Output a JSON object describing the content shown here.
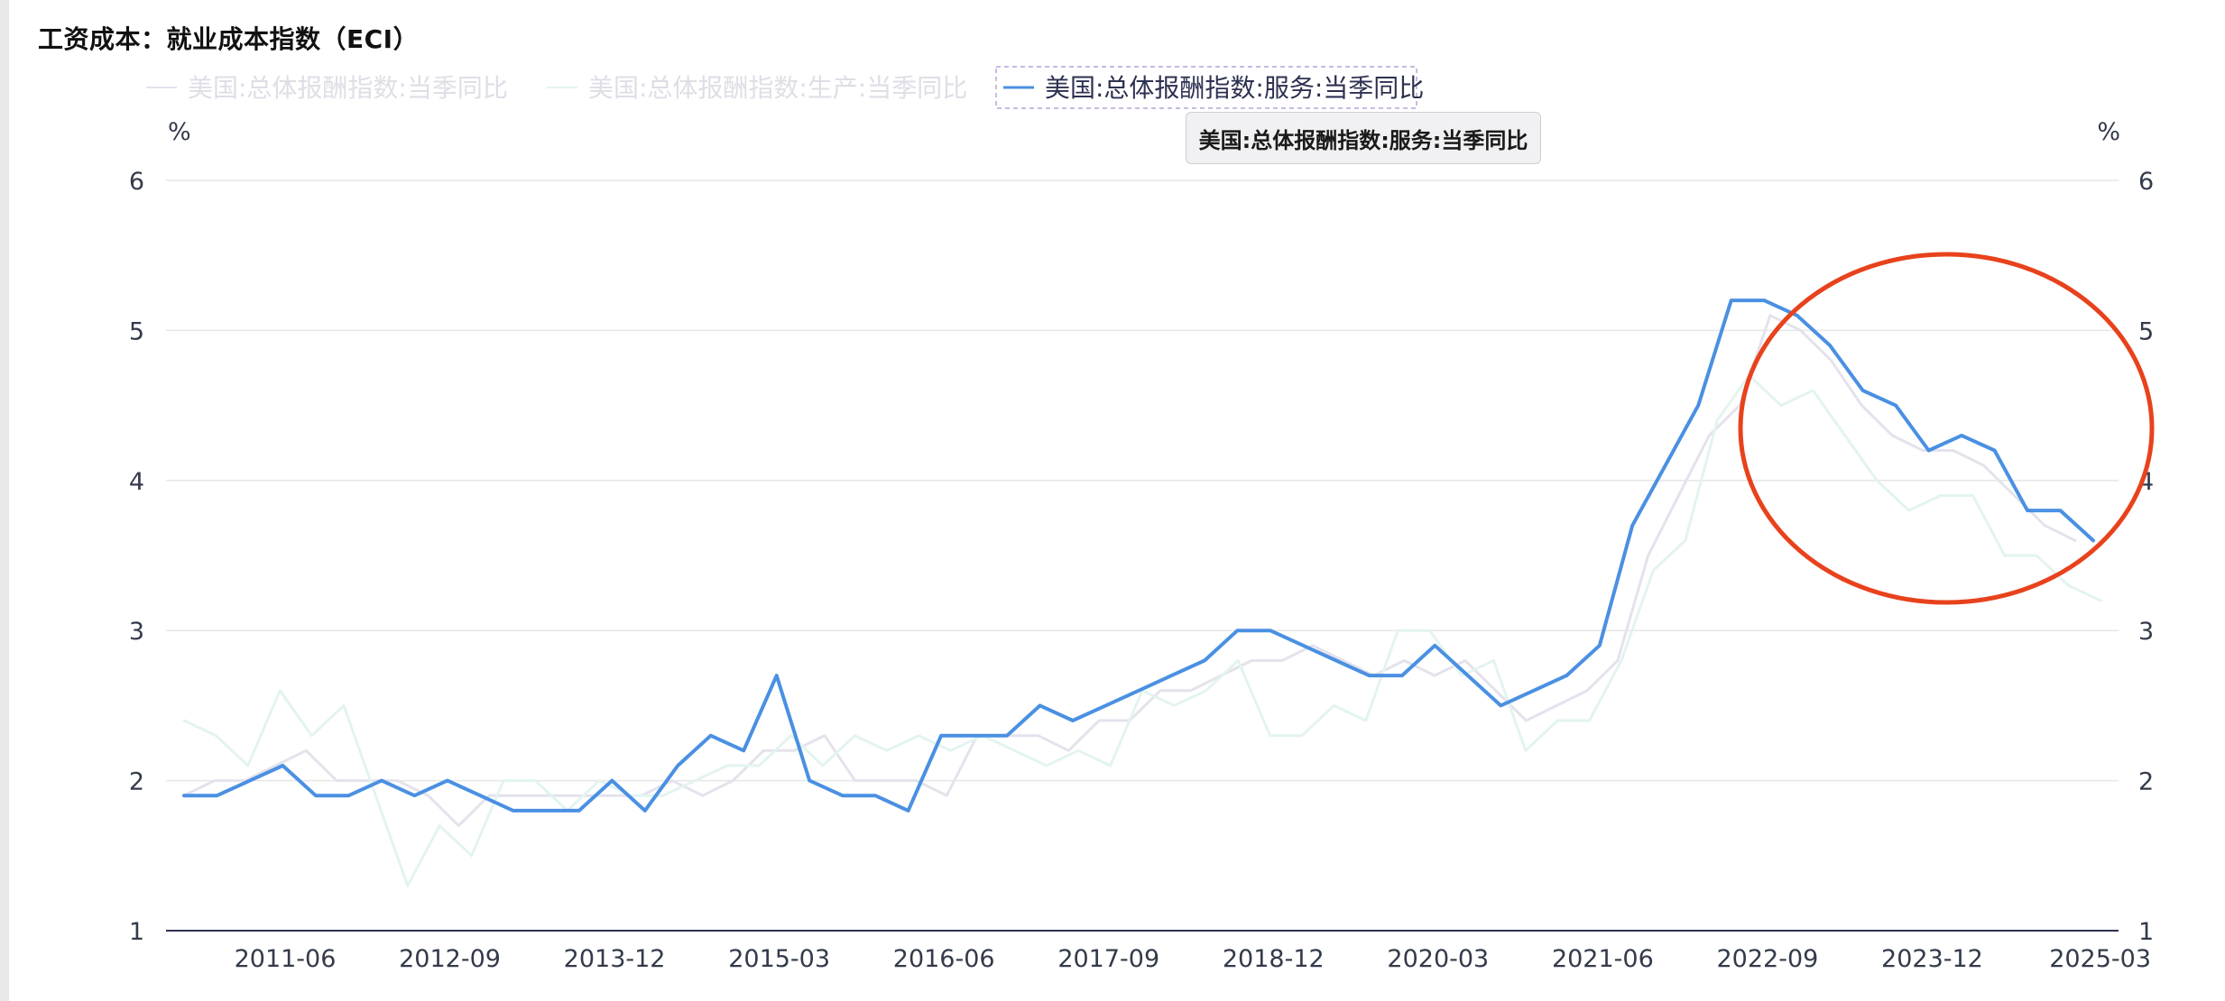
{
  "title": "工资成本：就业成本指数（ECI）",
  "tooltip": "美国:总体报酬指数:服务:当季同比",
  "annotation": {
    "shape": "ellipse",
    "color": "#e8421d"
  },
  "chart_data": {
    "type": "line",
    "title": "工资成本：就业成本指数（ECI）",
    "y_unit_left": "%",
    "y_unit_right": "%",
    "ylim": [
      1,
      6
    ],
    "yticks": [
      1,
      2,
      3,
      4,
      5,
      6
    ],
    "x_tick_labels": [
      "2011-06",
      "2012-09",
      "2013-12",
      "2015-03",
      "2016-06",
      "2017-09",
      "2018-12",
      "2020-03",
      "2021-06",
      "2022-09",
      "2023-12",
      "2025-03"
    ],
    "grid": true,
    "legend_position": "top",
    "series": [
      {
        "name": "美国:总体报酬指数:当季同比",
        "color": "#e4e2ec",
        "active": false,
        "values": [
          1.9,
          2.0,
          2.0,
          2.1,
          2.2,
          2.0,
          2.0,
          2.0,
          1.9,
          1.7,
          1.9,
          1.9,
          1.9,
          1.9,
          1.9,
          1.9,
          2.0,
          1.9,
          2.0,
          2.2,
          2.2,
          2.3,
          2.0,
          2.0,
          2.0,
          1.9,
          2.3,
          2.3,
          2.3,
          2.2,
          2.4,
          2.4,
          2.6,
          2.6,
          2.7,
          2.8,
          2.8,
          2.9,
          2.8,
          2.7,
          2.8,
          2.7,
          2.8,
          2.6,
          2.4,
          2.5,
          2.6,
          2.8,
          3.5,
          3.9,
          4.3,
          4.5,
          5.1,
          5.0,
          4.8,
          4.5,
          4.3,
          4.2,
          4.2,
          4.1,
          3.9,
          3.7,
          3.6
        ]
      },
      {
        "name": "美国:总体报酬指数:生产:当季同比",
        "color": "#e3f4f0",
        "active": false,
        "values": [
          2.4,
          2.3,
          2.1,
          2.6,
          2.3,
          2.5,
          1.9,
          1.3,
          1.7,
          1.5,
          2.0,
          2.0,
          1.8,
          2.0,
          1.9,
          1.9,
          2.0,
          2.1,
          2.1,
          2.3,
          2.1,
          2.3,
          2.2,
          2.3,
          2.2,
          2.3,
          2.2,
          2.1,
          2.2,
          2.1,
          2.6,
          2.5,
          2.6,
          2.8,
          2.3,
          2.3,
          2.5,
          2.4,
          3.0,
          3.0,
          2.7,
          2.8,
          2.2,
          2.4,
          2.4,
          2.8,
          3.4,
          3.6,
          4.4,
          4.7,
          4.5,
          4.6,
          4.3,
          4.0,
          3.8,
          3.9,
          3.9,
          3.5,
          3.5,
          3.3,
          3.2
        ]
      },
      {
        "name": "美国:总体报酬指数:服务:当季同比",
        "color": "#4a90e2",
        "active": true,
        "values": [
          1.9,
          1.9,
          2.0,
          2.1,
          1.9,
          1.9,
          2.0,
          1.9,
          2.0,
          1.9,
          1.8,
          1.8,
          1.8,
          2.0,
          1.8,
          2.1,
          2.3,
          2.2,
          2.7,
          2.0,
          1.9,
          1.9,
          1.8,
          2.3,
          2.3,
          2.3,
          2.5,
          2.4,
          2.5,
          2.6,
          2.7,
          2.8,
          3.0,
          3.0,
          2.9,
          2.8,
          2.7,
          2.7,
          2.9,
          2.7,
          2.5,
          2.6,
          2.7,
          2.9,
          3.7,
          4.1,
          4.5,
          5.2,
          5.2,
          5.1,
          4.9,
          4.6,
          4.5,
          4.2,
          4.3,
          4.2,
          3.8,
          3.8,
          3.6
        ]
      }
    ]
  }
}
